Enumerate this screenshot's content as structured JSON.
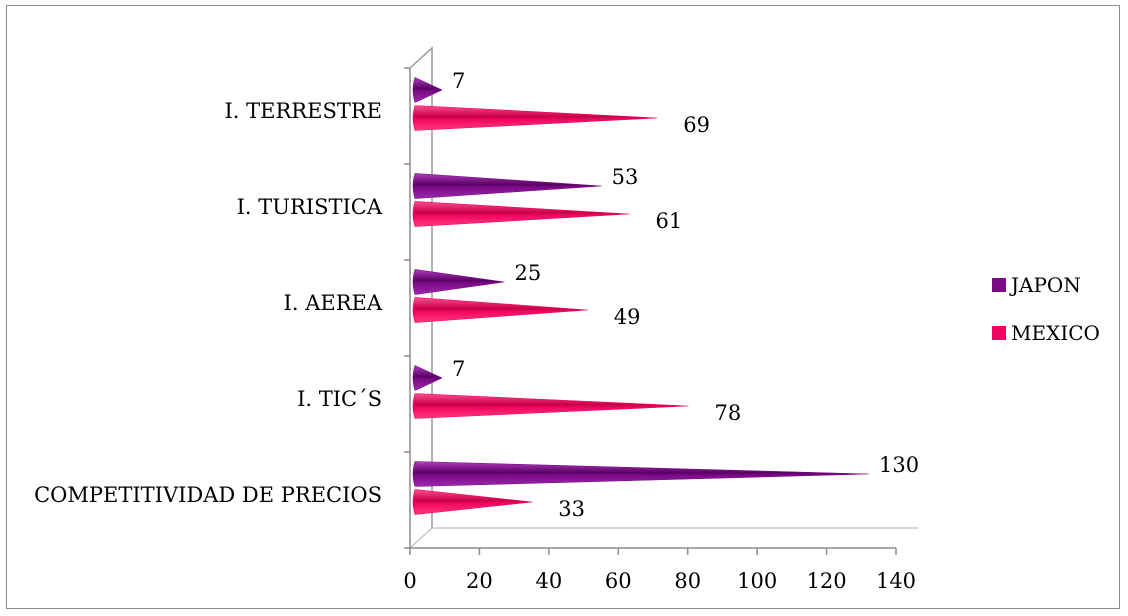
{
  "chart_data": {
    "type": "bar",
    "orientation": "horizontal",
    "categories": [
      "I. TERRESTRE",
      "I. TURISTICA",
      "I. AEREA",
      "I. TIC´S",
      "COMPETITIVIDAD DE PRECIOS"
    ],
    "series": [
      {
        "name": "JAPON",
        "color": "#7b0a87",
        "values": [
          7,
          53,
          25,
          7,
          130
        ]
      },
      {
        "name": "MEXICO",
        "color": "#f0055f",
        "values": [
          69,
          61,
          49,
          78,
          33
        ]
      }
    ],
    "xlim": [
      0,
      140
    ],
    "xticks": [
      "0",
      "20",
      "40",
      "60",
      "80",
      "100",
      "120",
      "140"
    ],
    "title": "",
    "xlabel": "",
    "ylabel": "",
    "legend_position": "right",
    "grid": false,
    "mark_shape": "cone"
  }
}
